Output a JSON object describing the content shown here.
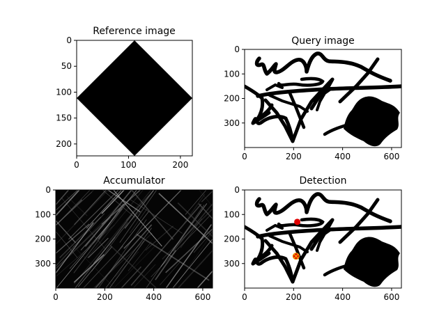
{
  "colors": {
    "ink": "#000000",
    "background": "#ffffff",
    "marker_fill": "#e00000",
    "cross_marker": "#f0a000"
  },
  "chart_data": [
    {
      "type": "image",
      "title": "Reference image",
      "image_extent": {
        "width": 223,
        "height": 223
      },
      "xticks": [
        0,
        100,
        200
      ],
      "yticks": [
        0,
        50,
        100,
        150,
        200
      ],
      "content": "black filled diamond"
    },
    {
      "type": "image",
      "title": "Query image",
      "image_extent": {
        "width": 640,
        "height": 400
      },
      "xticks": [
        0,
        200,
        400,
        600
      ],
      "yticks": [
        0,
        100,
        200,
        300
      ],
      "content": "thick black strokes and a filled blob"
    },
    {
      "type": "heatmap",
      "title": "Accumulator",
      "image_extent": {
        "width": 640,
        "height": 400
      },
      "xticks": [
        0,
        200,
        400,
        600
      ],
      "yticks": [
        0,
        100,
        200,
        300
      ],
      "colormap": "gray"
    },
    {
      "type": "scatter",
      "title": "Detection",
      "image_extent": {
        "width": 640,
        "height": 400
      },
      "xticks": [
        0,
        200,
        400,
        600
      ],
      "yticks": [
        0,
        100,
        200,
        300
      ],
      "points": [
        {
          "x": 215,
          "y": 130,
          "marker": "circle",
          "color": "#e00000"
        },
        {
          "x": 210,
          "y": 270,
          "marker": "x-circle",
          "color": "#f0a000"
        }
      ]
    }
  ]
}
